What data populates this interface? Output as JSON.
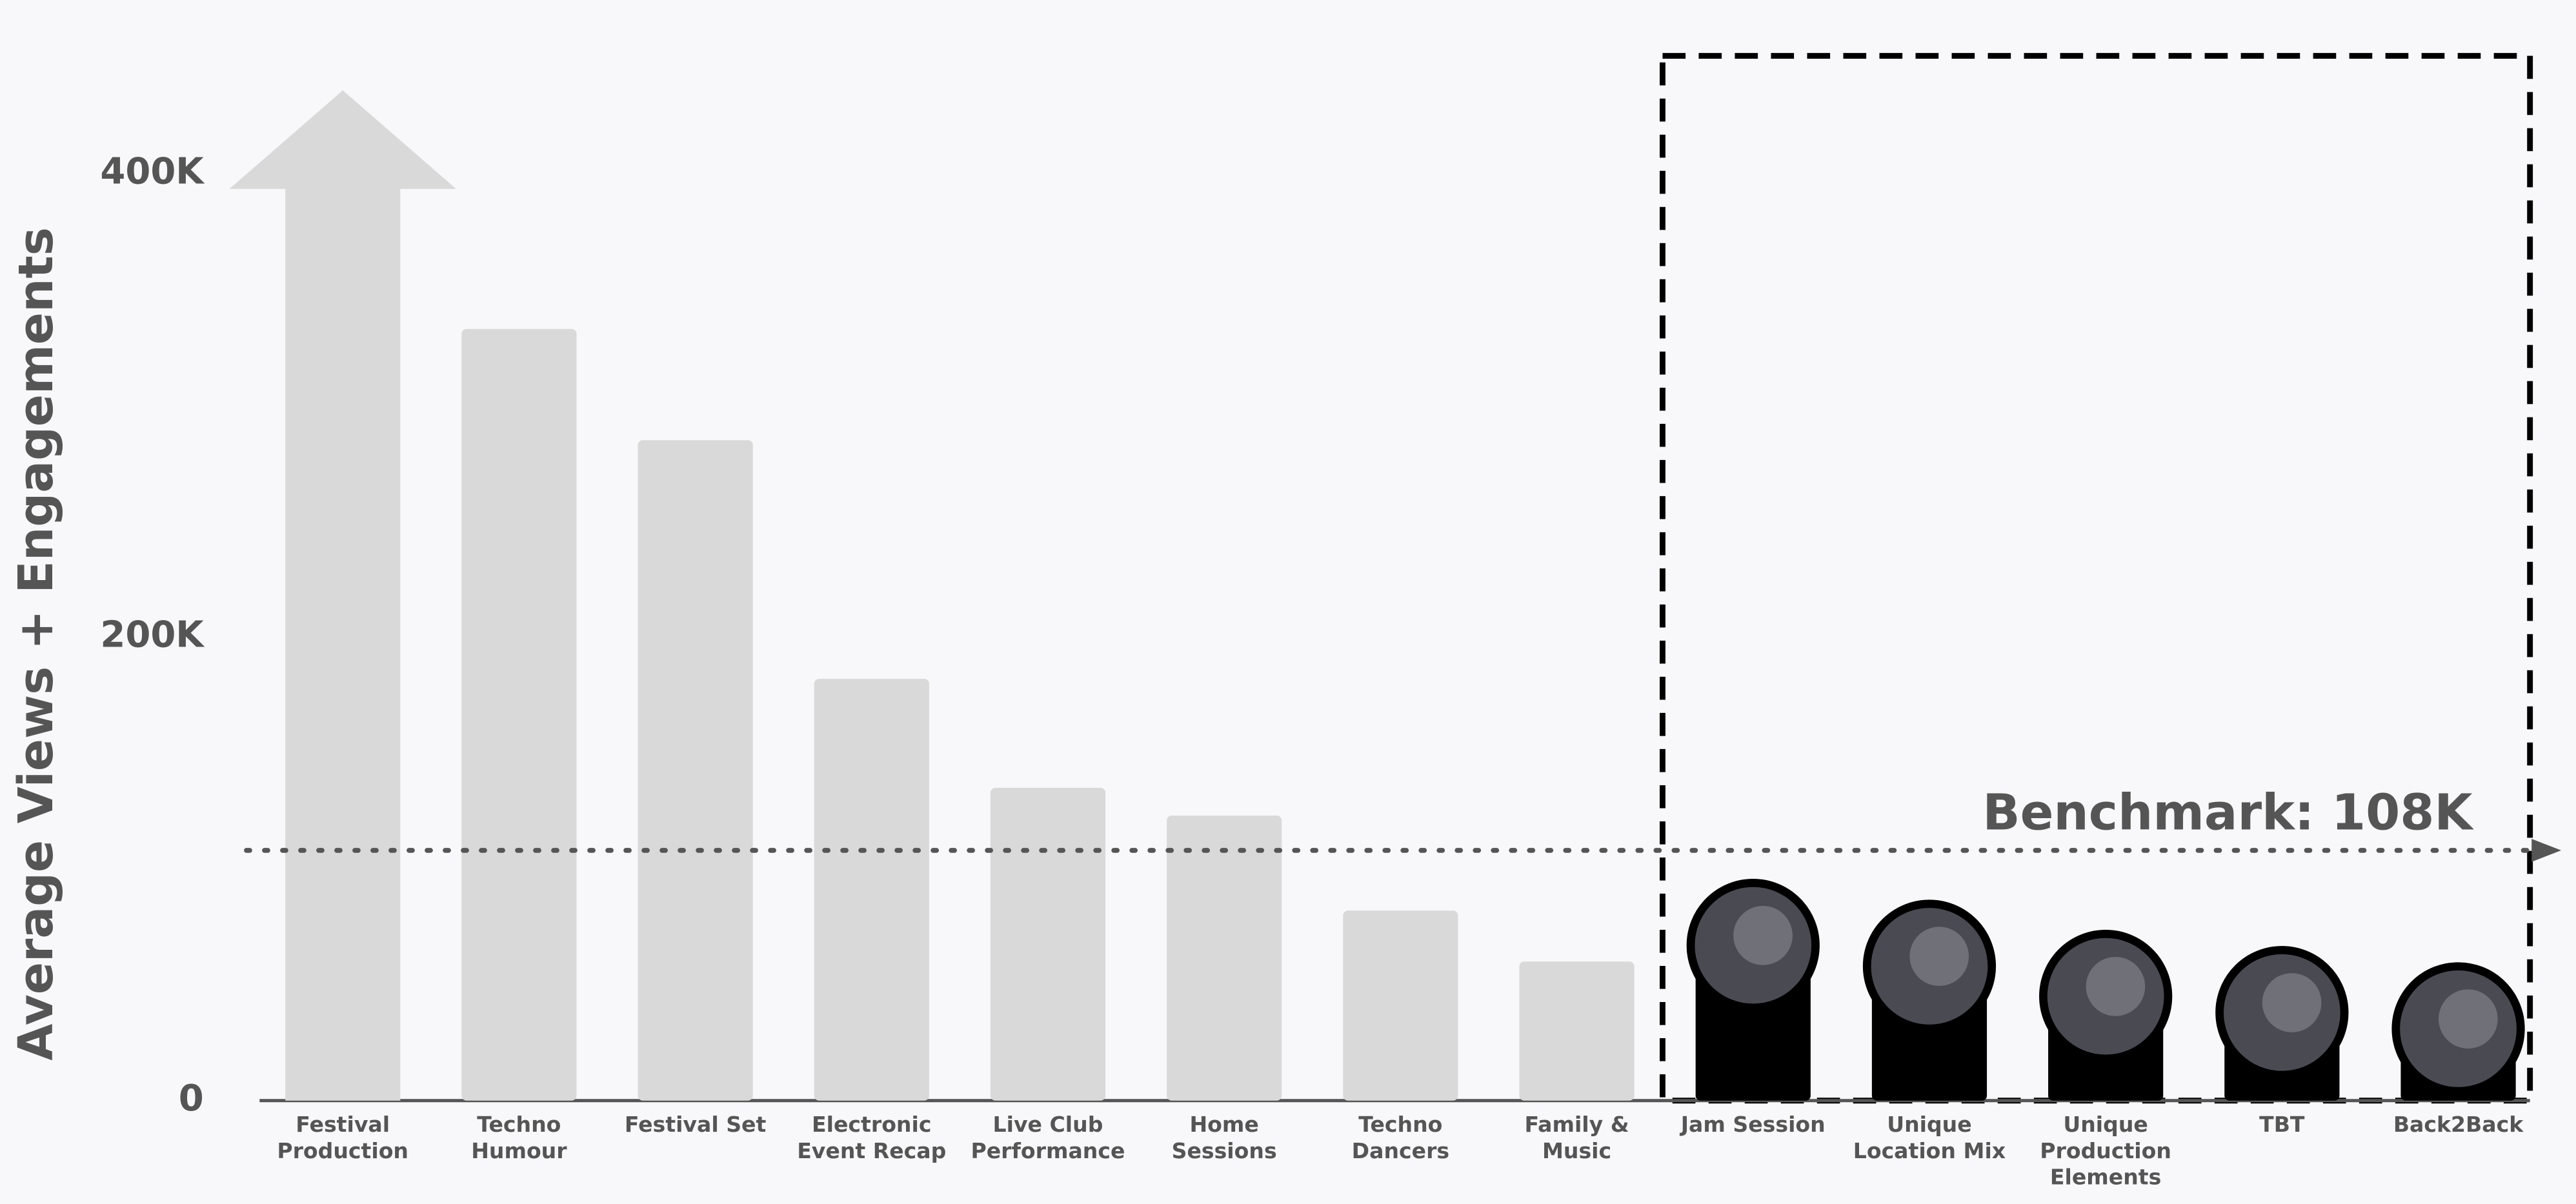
{
  "chart_data": {
    "type": "bar",
    "y_label": "Average Views + Engagements",
    "categories": [
      "Festival\nProduction",
      "Techno\nHumour",
      "Festival Set",
      "Electronic\nEvent Recap",
      "Live Club\nPerformance",
      "Home\nSessions",
      "Techno\nDancers",
      "Family &\nMusic",
      "Jam Session",
      "Unique\nLocation Mix",
      "Unique\nProduction\nElements",
      "TBT",
      "Back2Back"
    ],
    "values": [
      436000,
      333000,
      285000,
      182000,
      135000,
      123000,
      82000,
      60000,
      67000,
      58000,
      45000,
      38000,
      31000
    ],
    "colors": [
      "#d9d9d9",
      "#d9d9d9",
      "#d9d9d9",
      "#d9d9d9",
      "#d9d9d9",
      "#d9d9d9",
      "#d9d9d9",
      "#d9d9d9",
      "#000000",
      "#000000",
      "#000000",
      "#000000",
      "#000000"
    ],
    "ylim": [
      0,
      436000
    ],
    "yticks": [
      0,
      {
        "value": 200000,
        "label": "200K"
      },
      {
        "value": 400000,
        "label": "400K"
      }
    ],
    "benchmark": {
      "value": 108000,
      "label": "Benchmark: 108K"
    }
  }
}
